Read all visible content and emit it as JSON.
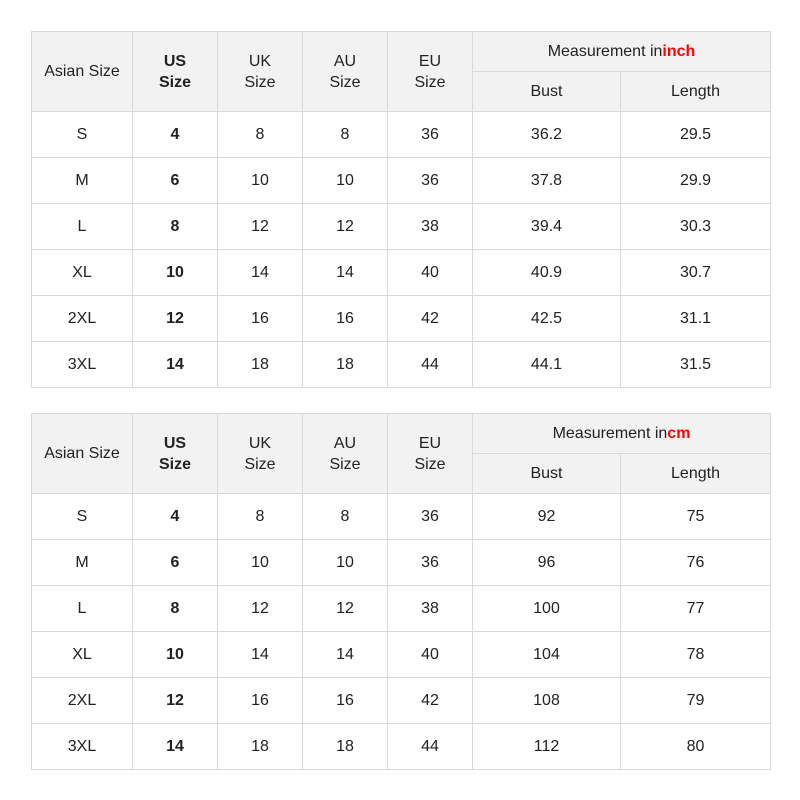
{
  "headers": {
    "asian": "Asian Size",
    "us": [
      "US",
      "Size"
    ],
    "uk": [
      "UK",
      "Size"
    ],
    "au": [
      "AU",
      "Size"
    ],
    "eu": [
      "EU",
      "Size"
    ],
    "measurement_prefix": "Measurement in",
    "bust": "Bust",
    "length": "Length"
  },
  "unit_color": "#ff0000",
  "tables": [
    {
      "unit": "inch",
      "rows": [
        [
          "S",
          "4",
          "8",
          "8",
          "36",
          "36.2",
          "29.5"
        ],
        [
          "M",
          "6",
          "10",
          "10",
          "36",
          "37.8",
          "29.9"
        ],
        [
          "L",
          "8",
          "12",
          "12",
          "38",
          "39.4",
          "30.3"
        ],
        [
          "XL",
          "10",
          "14",
          "14",
          "40",
          "40.9",
          "30.7"
        ],
        [
          "2XL",
          "12",
          "16",
          "16",
          "42",
          "42.5",
          "31.1"
        ],
        [
          "3XL",
          "14",
          "18",
          "18",
          "44",
          "44.1",
          "31.5"
        ]
      ]
    },
    {
      "unit": "cm",
      "rows": [
        [
          "S",
          "4",
          "8",
          "8",
          "36",
          "92",
          "75"
        ],
        [
          "M",
          "6",
          "10",
          "10",
          "36",
          "96",
          "76"
        ],
        [
          "L",
          "8",
          "12",
          "12",
          "38",
          "100",
          "77"
        ],
        [
          "XL",
          "10",
          "14",
          "14",
          "40",
          "104",
          "78"
        ],
        [
          "2XL",
          "12",
          "16",
          "16",
          "42",
          "108",
          "79"
        ],
        [
          "3XL",
          "14",
          "18",
          "18",
          "44",
          "112",
          "80"
        ]
      ]
    }
  ]
}
